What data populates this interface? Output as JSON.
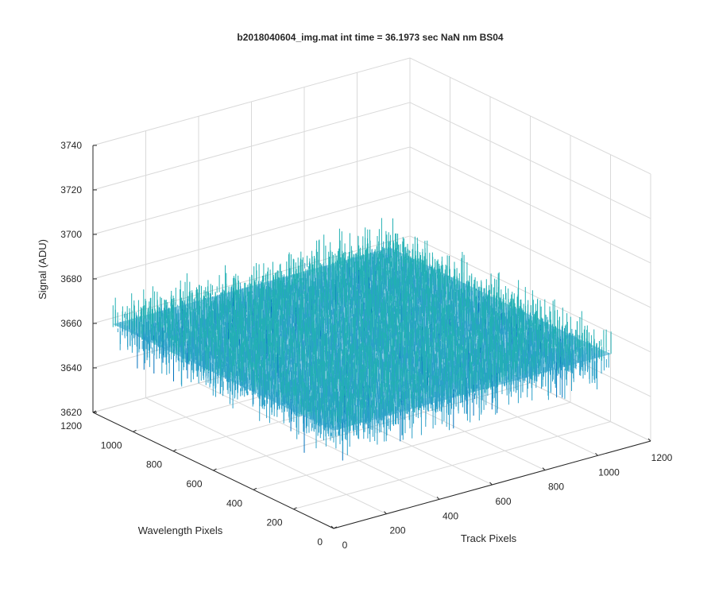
{
  "chart_data": {
    "type": "surface3d",
    "title": "b2018040604_img.mat int time = 36.1973 sec  NaN nm BS04",
    "xlabel": "Track Pixels",
    "ylabel": "Wavelength Pixels",
    "zlabel": "Signal (ADU)",
    "x_ticks": [
      "0",
      "200",
      "400",
      "600",
      "800",
      "1000",
      "1200"
    ],
    "y_ticks": [
      "0",
      "200",
      "400",
      "600",
      "800",
      "1000",
      "1200"
    ],
    "z_ticks": [
      "3620",
      "3640",
      "3660",
      "3680",
      "3700",
      "3720",
      "3740"
    ],
    "xlim": [
      0,
      1200
    ],
    "ylim": [
      0,
      1200
    ],
    "zlim": [
      3620,
      3740
    ],
    "data_extent": {
      "x": [
        0,
        1050
      ],
      "y": [
        0,
        1100
      ],
      "z_mean": 3664,
      "z_noise_range": [
        3630,
        3725
      ]
    },
    "colormap": [
      "#0072bd",
      "#2ba0c8",
      "#22b0b3",
      "#5fbf8d",
      "#c4b54b"
    ],
    "grid": true
  }
}
